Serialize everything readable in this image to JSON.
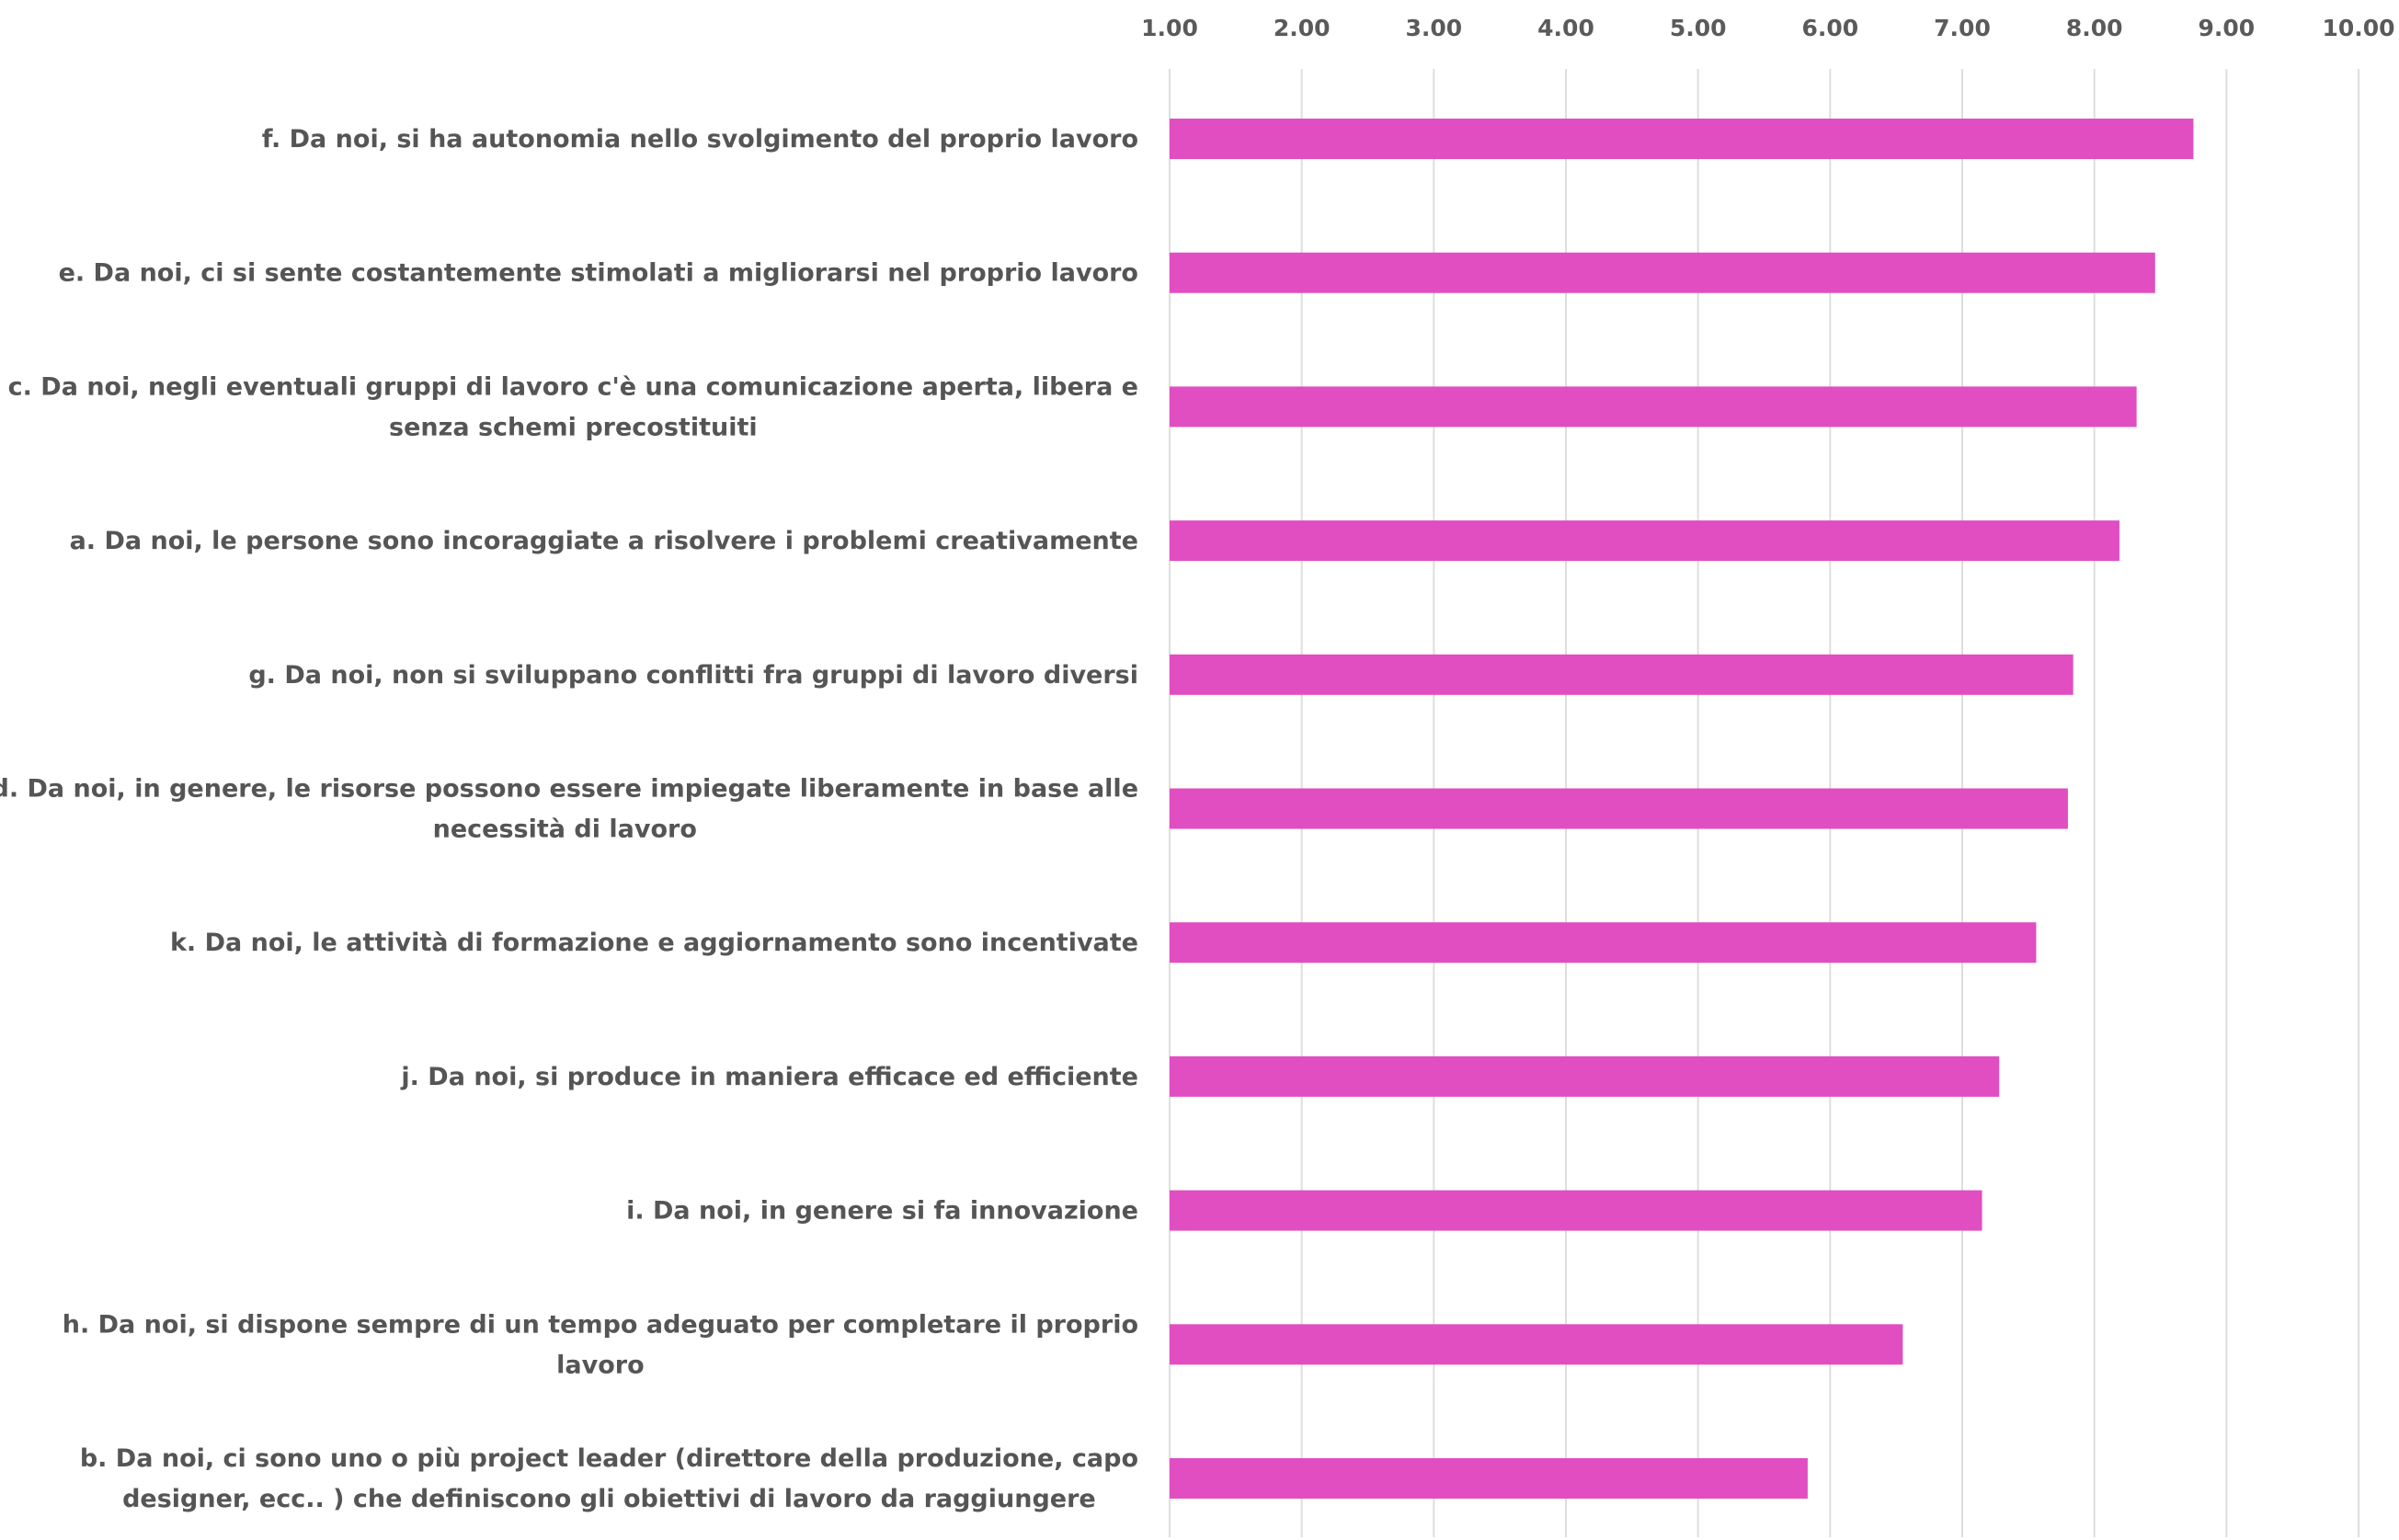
{
  "chart_data": {
    "type": "bar",
    "orientation": "horizontal",
    "title": "",
    "xlabel": "",
    "ylabel": "",
    "xlim": [
      1,
      10
    ],
    "x_ticks": [
      "1.00",
      "2.00",
      "3.00",
      "4.00",
      "5.00",
      "6.00",
      "7.00",
      "8.00",
      "9.00",
      "10.00"
    ],
    "axis_position": "top",
    "grid": true,
    "legend": "none",
    "bar_color": "#e04ec2",
    "categories": [
      [
        "f. Da noi, si ha autonomia nello svolgimento del proprio lavoro"
      ],
      [
        "e. Da noi, ci si sente costantemente stimolati a migliorarsi nel proprio lavoro"
      ],
      [
        "c. Da noi, negli eventuali gruppi di lavoro c'è una comunicazione aperta, libera e",
        "senza schemi precostituiti"
      ],
      [
        "a. Da noi, le persone sono incoraggiate a risolvere i problemi creativamente"
      ],
      [
        "g. Da noi, non si sviluppano conflitti fra gruppi di lavoro diversi"
      ],
      [
        "d. Da noi, in genere, le risorse possono essere impiegate liberamente in base alle",
        "necessità  di lavoro"
      ],
      [
        "k. Da noi, le attività  di formazione e aggiornamento sono incentivate"
      ],
      [
        "j. Da noi, si produce in maniera efficace ed efficiente"
      ],
      [
        "i. Da noi, in genere si fa innovazione"
      ],
      [
        "h. Da noi, si dispone sempre di un tempo adeguato per completare il proprio",
        "lavoro"
      ],
      [
        "b. Da noi, ci sono uno o più project leader (direttore della produzione, capo",
        "designer, ecc.. ) che definiscono gli obiettivi di lavoro da raggiungere"
      ]
    ],
    "values": [
      8.75,
      8.46,
      8.32,
      8.19,
      7.84,
      7.8,
      7.56,
      7.28,
      7.15,
      6.55,
      5.83
    ]
  }
}
